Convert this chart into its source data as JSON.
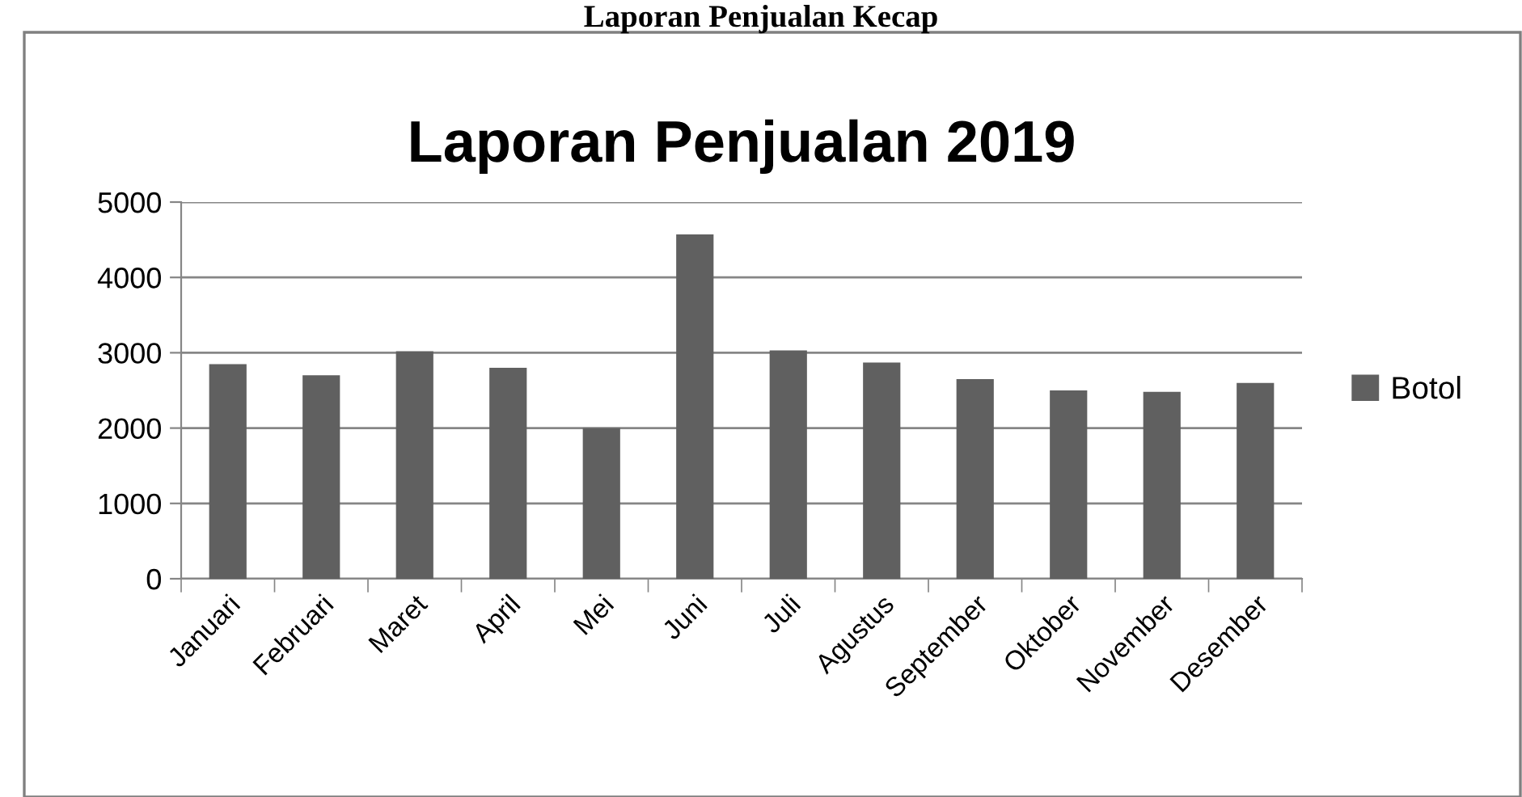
{
  "chart_data": {
    "type": "bar",
    "title": "Laporan Penjualan 2019",
    "annotations": [
      "Laporan Penjualan Kecap"
    ],
    "categories": [
      "Januari",
      "Februari",
      "Maret",
      "April",
      "Mei",
      "Juni",
      "Juli",
      "Agustus",
      "September",
      "Oktober",
      "November",
      "Desember"
    ],
    "series": [
      {
        "name": "Botol",
        "color": "#606060",
        "values": [
          2850,
          2700,
          3020,
          2800,
          2000,
          4570,
          3030,
          2870,
          2650,
          2500,
          2480,
          2600
        ]
      }
    ],
    "ylim": [
      0,
      5000
    ],
    "yticks": [
      0,
      1000,
      2000,
      3000,
      4000,
      5000
    ],
    "grid": "y",
    "legend": "right"
  }
}
